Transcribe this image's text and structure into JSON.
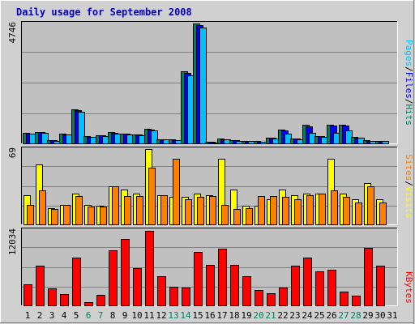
{
  "title": "Daily usage for September 2008",
  "colors": {
    "hits": "#00805c",
    "files": "#0000ff",
    "pages": "#00c0ff",
    "visits": "#ffff00",
    "sites": "#ff8000",
    "kbytes": "#ff0000",
    "panel_bg": "#c0c0c0",
    "outer_bg": "#d0d0d0",
    "gridline": "#808080",
    "weekend_label": "#00805c",
    "weekday_label": "#000000"
  },
  "chart_data": [
    {
      "type": "bar",
      "panel": "top",
      "ylim": [
        0,
        4746
      ],
      "ymax_label": "4746",
      "legend": [
        "Pages",
        "/",
        "Files",
        "/",
        "Hits"
      ],
      "categories": [
        "1",
        "2",
        "3",
        "4",
        "5",
        "6",
        "7",
        "8",
        "9",
        "10",
        "11",
        "12",
        "13",
        "14",
        "15",
        "16",
        "17",
        "18",
        "19",
        "20",
        "21",
        "22",
        "23",
        "24",
        "25",
        "26",
        "27",
        "28",
        "29",
        "30",
        "31"
      ],
      "series": [
        {
          "name": "Hits",
          "values": [
            420,
            460,
            130,
            380,
            1340,
            290,
            330,
            450,
            400,
            360,
            590,
            170,
            150,
            2840,
            4746,
            60,
            180,
            130,
            110,
            90,
            230,
            540,
            200,
            730,
            300,
            750,
            750,
            250,
            130,
            110,
            0
          ]
        },
        {
          "name": "Files",
          "values": [
            400,
            440,
            120,
            360,
            1300,
            270,
            310,
            420,
            380,
            340,
            560,
            160,
            140,
            2780,
            4680,
            50,
            170,
            120,
            100,
            80,
            210,
            500,
            180,
            680,
            280,
            700,
            700,
            230,
            110,
            100,
            0
          ]
        },
        {
          "name": "Pages",
          "values": [
            380,
            420,
            110,
            340,
            1260,
            250,
            290,
            400,
            360,
            320,
            520,
            150,
            120,
            2700,
            4600,
            40,
            160,
            110,
            90,
            70,
            190,
            400,
            160,
            420,
            260,
            430,
            500,
            210,
            90,
            90,
            0
          ]
        }
      ]
    },
    {
      "type": "bar",
      "panel": "middle",
      "ylim": [
        0,
        69
      ],
      "ymax_label": "69",
      "legend": [
        "Sites",
        "/",
        "Visits"
      ],
      "categories": [
        "1",
        "2",
        "3",
        "4",
        "5",
        "6",
        "7",
        "8",
        "9",
        "10",
        "11",
        "12",
        "13",
        "14",
        "15",
        "16",
        "17",
        "18",
        "19",
        "20",
        "21",
        "22",
        "23",
        "24",
        "25",
        "26",
        "27",
        "28",
        "29",
        "30",
        "31"
      ],
      "series": [
        {
          "name": "Visits",
          "values": [
            27,
            55,
            15,
            18,
            28,
            18,
            17,
            35,
            32,
            28,
            69,
            27,
            25,
            25,
            28,
            27,
            60,
            32,
            17,
            17,
            23,
            32,
            27,
            28,
            28,
            60,
            28,
            23,
            38,
            23,
            0
          ]
        },
        {
          "name": "Sites",
          "values": [
            18,
            31,
            14,
            18,
            26,
            16,
            16,
            35,
            26,
            26,
            52,
            27,
            60,
            23,
            25,
            26,
            18,
            14,
            15,
            26,
            26,
            25,
            23,
            27,
            28,
            31,
            25,
            20,
            35,
            20,
            0
          ]
        }
      ]
    },
    {
      "type": "bar",
      "panel": "bottom",
      "ylim": [
        0,
        12034
      ],
      "ymax_label": "12034",
      "legend": [
        "KBytes"
      ],
      "categories": [
        "1",
        "2",
        "3",
        "4",
        "5",
        "6",
        "7",
        "8",
        "9",
        "10",
        "11",
        "12",
        "13",
        "14",
        "15",
        "16",
        "17",
        "18",
        "19",
        "20",
        "21",
        "22",
        "23",
        "24",
        "25",
        "26",
        "27",
        "28",
        "29",
        "30",
        "31"
      ],
      "series": [
        {
          "name": "KBytes",
          "values": [
            3300,
            6400,
            2700,
            1800,
            7600,
            500,
            1700,
            8800,
            10600,
            6000,
            11900,
            4700,
            3000,
            2800,
            8500,
            6500,
            9000,
            6500,
            4600,
            2400,
            2000,
            2800,
            6400,
            7600,
            5400,
            5700,
            2200,
            1600,
            9200,
            6400,
            0
          ]
        }
      ]
    }
  ],
  "x_labels": [
    "1",
    "2",
    "3",
    "4",
    "5",
    "6",
    "7",
    "8",
    "9",
    "10",
    "11",
    "12",
    "13",
    "14",
    "15",
    "16",
    "17",
    "18",
    "19",
    "20",
    "21",
    "22",
    "23",
    "24",
    "25",
    "26",
    "27",
    "28",
    "29",
    "30",
    "31"
  ],
  "weekend_days": [
    6,
    7,
    13,
    14,
    20,
    21,
    27,
    28
  ]
}
